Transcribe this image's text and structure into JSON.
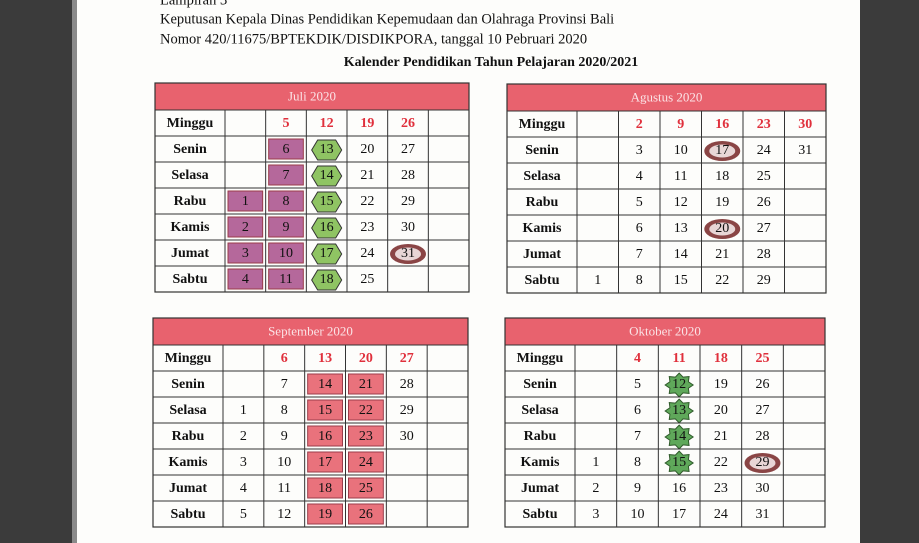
{
  "header": {
    "lines": [
      "Lampiran 3",
      "Keputusan Kepala Dinas Pendidikan Kepemudaan dan Olahraga Provinsi Bali",
      "Nomor 420/11675/BPTEKDIK/DISDIKPORA, tanggal 10 Pebruari 2020"
    ],
    "title": "Kalender Pendidikan Tahun Pelajaran 2020/2021"
  },
  "months": [
    {
      "name": "Juli 2020",
      "head": [
        "Minggu",
        null,
        "5",
        "12",
        "19",
        "26",
        null
      ],
      "rows": [
        [
          "Senin",
          null,
          {
            "text": "6",
            "fill": "#b5689b",
            "shape": "box"
          },
          {
            "text": "13",
            "fill": "#8fc463",
            "shape": "hex"
          },
          "20",
          "27",
          null
        ],
        [
          "Selasa",
          null,
          {
            "text": "7",
            "fill": "#b5689b",
            "shape": "box"
          },
          {
            "text": "14",
            "fill": "#8fc463",
            "shape": "hex"
          },
          "21",
          "28",
          null
        ],
        [
          "Rabu",
          {
            "text": "1",
            "fill": "#b5689b",
            "shape": "box"
          },
          {
            "text": "8",
            "fill": "#b5689b",
            "shape": "box"
          },
          {
            "text": "15",
            "fill": "#8fc463",
            "shape": "hex"
          },
          "22",
          "29",
          null
        ],
        [
          "Kamis",
          {
            "text": "2",
            "fill": "#b5689b",
            "shape": "box"
          },
          {
            "text": "9",
            "fill": "#b5689b",
            "shape": "box"
          },
          {
            "text": "16",
            "fill": "#8fc463",
            "shape": "hex"
          },
          "23",
          "30",
          null
        ],
        [
          "Jumat",
          {
            "text": "3",
            "fill": "#b5689b",
            "shape": "box"
          },
          {
            "text": "10",
            "fill": "#b5689b",
            "shape": "box"
          },
          {
            "text": "17",
            "fill": "#8fc463",
            "shape": "hex"
          },
          "24",
          {
            "text": "31",
            "fill": "#8a4545",
            "shape": "oval"
          },
          null
        ],
        [
          "Sabtu",
          {
            "text": "4",
            "fill": "#b5689b",
            "shape": "box"
          },
          {
            "text": "11",
            "fill": "#b5689b",
            "shape": "box"
          },
          {
            "text": "18",
            "fill": "#8fc463",
            "shape": "hex"
          },
          "25",
          null,
          null
        ]
      ]
    },
    {
      "name": "Agustus 2020",
      "head": [
        "Minggu",
        null,
        "2",
        "9",
        "16",
        "23",
        "30"
      ],
      "rows": [
        [
          "Senin",
          null,
          "3",
          "10",
          {
            "text": "17",
            "fill": "#8a4545",
            "shape": "oval"
          },
          "24",
          "31"
        ],
        [
          "Selasa",
          null,
          "4",
          "11",
          "18",
          "25",
          null
        ],
        [
          "Rabu",
          null,
          "5",
          "12",
          "19",
          "26",
          null
        ],
        [
          "Kamis",
          null,
          "6",
          "13",
          {
            "text": "20",
            "fill": "#8a4545",
            "shape": "oval"
          },
          "27",
          null
        ],
        [
          "Jumat",
          null,
          "7",
          "14",
          "21",
          "28",
          null
        ],
        [
          "Sabtu",
          "1",
          "8",
          "15",
          "22",
          "29",
          null
        ]
      ]
    },
    {
      "name": "September 2020",
      "head": [
        "Minggu",
        null,
        "6",
        "13",
        "20",
        "27",
        null
      ],
      "rows": [
        [
          "Senin",
          null,
          "7",
          {
            "text": "14",
            "fill": "#e9727c",
            "shape": "box"
          },
          {
            "text": "21",
            "fill": "#e9727c",
            "shape": "box"
          },
          "28",
          null
        ],
        [
          "Selasa",
          "1",
          "8",
          {
            "text": "15",
            "fill": "#e9727c",
            "shape": "box"
          },
          {
            "text": "22",
            "fill": "#e9727c",
            "shape": "box"
          },
          "29",
          null
        ],
        [
          "Rabu",
          "2",
          "9",
          {
            "text": "16",
            "fill": "#e9727c",
            "shape": "box"
          },
          {
            "text": "23",
            "fill": "#e9727c",
            "shape": "box"
          },
          "30",
          null
        ],
        [
          "Kamis",
          "3",
          "10",
          {
            "text": "17",
            "fill": "#e9727c",
            "shape": "box"
          },
          {
            "text": "24",
            "fill": "#e9727c",
            "shape": "box"
          },
          null,
          null
        ],
        [
          "Jumat",
          "4",
          "11",
          {
            "text": "18",
            "fill": "#e9727c",
            "shape": "box"
          },
          {
            "text": "25",
            "fill": "#e9727c",
            "shape": "box"
          },
          null,
          null
        ],
        [
          "Sabtu",
          "5",
          "12",
          {
            "text": "19",
            "fill": "#e9727c",
            "shape": "box"
          },
          {
            "text": "26",
            "fill": "#e9727c",
            "shape": "box"
          },
          null,
          null
        ]
      ]
    },
    {
      "name": "Oktober 2020",
      "head": [
        "Minggu",
        null,
        "4",
        "11",
        "18",
        "25",
        null
      ],
      "rows": [
        [
          "Senin",
          null,
          "5",
          {
            "text": "12",
            "fill": "#5fa85a",
            "shape": "star"
          },
          "19",
          "26",
          null
        ],
        [
          "Selasa",
          null,
          "6",
          {
            "text": "13",
            "fill": "#5fa85a",
            "shape": "star"
          },
          "20",
          "27",
          null
        ],
        [
          "Rabu",
          null,
          "7",
          {
            "text": "14",
            "fill": "#5fa85a",
            "shape": "star"
          },
          "21",
          "28",
          null
        ],
        [
          "Kamis",
          "1",
          "8",
          {
            "text": "15",
            "fill": "#5fa85a",
            "shape": "star"
          },
          "22",
          {
            "text": "29",
            "fill": "#8a4545",
            "shape": "oval"
          },
          null
        ],
        [
          "Jumat",
          "2",
          "9",
          "16",
          "23",
          "30",
          null
        ],
        [
          "Sabtu",
          "3",
          "10",
          "17",
          "24",
          "31",
          null
        ]
      ]
    }
  ]
}
